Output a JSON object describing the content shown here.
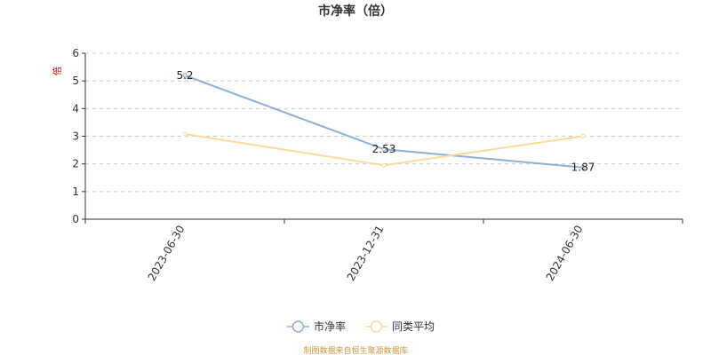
{
  "chart_data": {
    "type": "line",
    "title": "市净率（倍）",
    "ylabel": "倍",
    "categories": [
      "2023-06-30",
      "2023-12-31",
      "2024-06-30"
    ],
    "ylim": [
      0,
      6
    ],
    "yticks": [
      0,
      1,
      2,
      3,
      4,
      5,
      6
    ],
    "grid": true,
    "legend_position": "bottom-center",
    "series": [
      {
        "name": "市净率",
        "values": [
          5.2,
          2.53,
          1.87
        ],
        "labels": [
          "5.2",
          "2.53",
          "1.87"
        ],
        "color": "#8eaed4"
      },
      {
        "name": "同类平均",
        "values": [
          3.08,
          1.95,
          3.0
        ],
        "color": "#f7dc9c"
      }
    ]
  },
  "source_note": "制图数据来自恒生聚源数据库"
}
